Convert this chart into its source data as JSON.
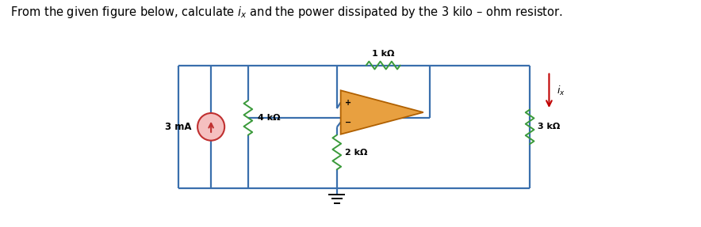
{
  "title_text": "From the given figure below, calculate $i_x$ and the power dissipated by the 3 kilo – ohm resistor.",
  "bg_color": "#ffffff",
  "wire_color": "#3a6fad",
  "resistor_color": "#3a9a3a",
  "current_source_body_color": "#f5c0c0",
  "current_source_edge_color": "#c03030",
  "current_source_arrow_color": "#c03030",
  "opamp_face_color": "#e8a040",
  "opamp_edge_color": "#b06000",
  "ix_arrow_color": "#c00000",
  "label_1kohm": "1 kΩ",
  "label_4kohm": "4 kΩ",
  "label_2kohm": "2 kΩ",
  "label_3kohm": "3 kΩ",
  "label_3mA": "3 mA",
  "label_ix": "$i_x$",
  "wire_lw": 1.6,
  "resistor_lw": 1.4
}
